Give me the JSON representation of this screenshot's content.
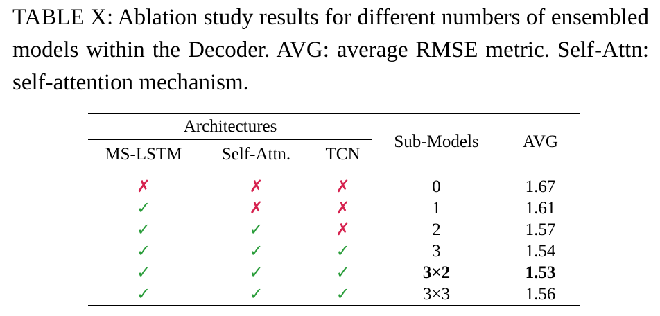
{
  "caption": "TABLE X: Ablation study results for different numbers of ensembled models within the Decoder. AVG: average RMSE metric. Self-Attn: self-attention mechanism.",
  "table": {
    "group_header": "Architectures",
    "columns": [
      "MS-LSTM",
      "Self-Attn.",
      "TCN",
      "Sub-Models",
      "AVG"
    ],
    "rows": [
      {
        "ms_lstm": "✗",
        "self_attn": "✗",
        "tcn": "✗",
        "sub_models": "0",
        "avg": "1.67"
      },
      {
        "ms_lstm": "✓",
        "self_attn": "✗",
        "tcn": "✗",
        "sub_models": "1",
        "avg": "1.61"
      },
      {
        "ms_lstm": "✓",
        "self_attn": "✓",
        "tcn": "✗",
        "sub_models": "2",
        "avg": "1.57"
      },
      {
        "ms_lstm": "✓",
        "self_attn": "✓",
        "tcn": "✓",
        "sub_models": "3",
        "avg": "1.54"
      },
      {
        "ms_lstm": "✓",
        "self_attn": "✓",
        "tcn": "✓",
        "sub_models": "3×2",
        "avg": "1.53"
      },
      {
        "ms_lstm": "✓",
        "self_attn": "✓",
        "tcn": "✓",
        "sub_models": "3×3",
        "avg": "1.56"
      }
    ],
    "bold_row_index": 4,
    "colors": {
      "check": "#2a9d3a",
      "cross": "#d6224f"
    }
  }
}
